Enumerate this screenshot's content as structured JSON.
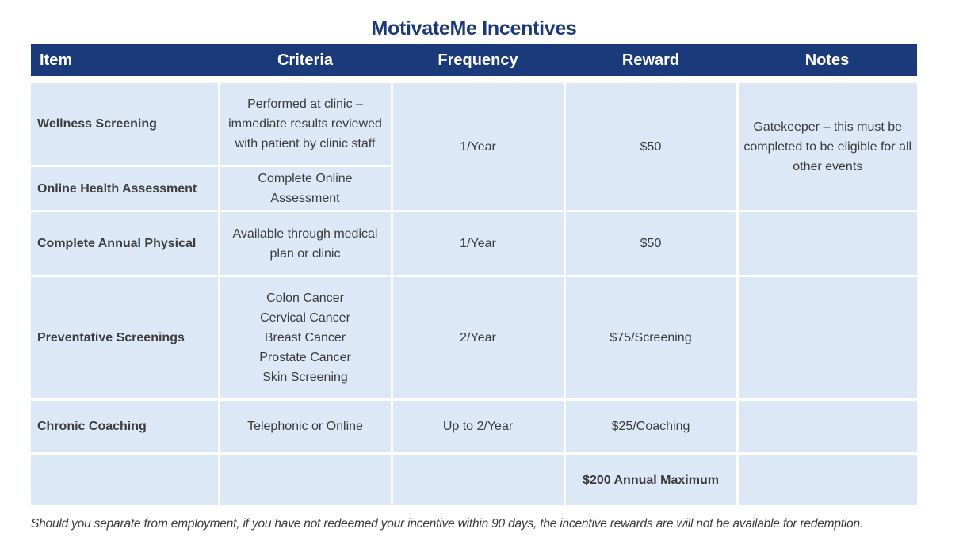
{
  "title": "MotivateMe Incentives",
  "headers": {
    "item": "Item",
    "criteria": "Criteria",
    "frequency": "Frequency",
    "reward": "Reward",
    "notes": "Notes"
  },
  "rows": {
    "wellness": {
      "item": "Wellness Screening",
      "criteria": [
        "Performed at clinic –",
        "immediate results reviewed",
        "with patient by clinic staff"
      ]
    },
    "assessment": {
      "item": "Online Health Assessment",
      "criteria": "Complete Online Assessment"
    },
    "shared": {
      "frequency": "1/Year",
      "reward": "$50",
      "notes": [
        "Gatekeeper – this must be",
        "completed to be eligible for all",
        "other events"
      ]
    },
    "physical": {
      "item": "Complete Annual Physical",
      "criteria": [
        "Available through medical",
        "plan or clinic"
      ],
      "frequency": "1/Year",
      "reward": "$50",
      "notes": ""
    },
    "preventative": {
      "item": "Preventative Screenings",
      "criteria": [
        "Colon Cancer",
        "Cervical Cancer",
        "Breast Cancer",
        "Prostate Cancer",
        "Skin Screening"
      ],
      "frequency": "2/Year",
      "reward": "$75/Screening",
      "notes": ""
    },
    "coaching": {
      "item": "Chronic Coaching",
      "criteria": "Telephonic or Online",
      "frequency": "Up to 2/Year",
      "reward": "$25/Coaching",
      "notes": ""
    },
    "maximum": {
      "reward": "$200 Annual Maximum"
    }
  },
  "footnote": "Should you separate from employment, if you have not redeemed your incentive within 90 days, the incentive rewards are will not be available for redemption."
}
